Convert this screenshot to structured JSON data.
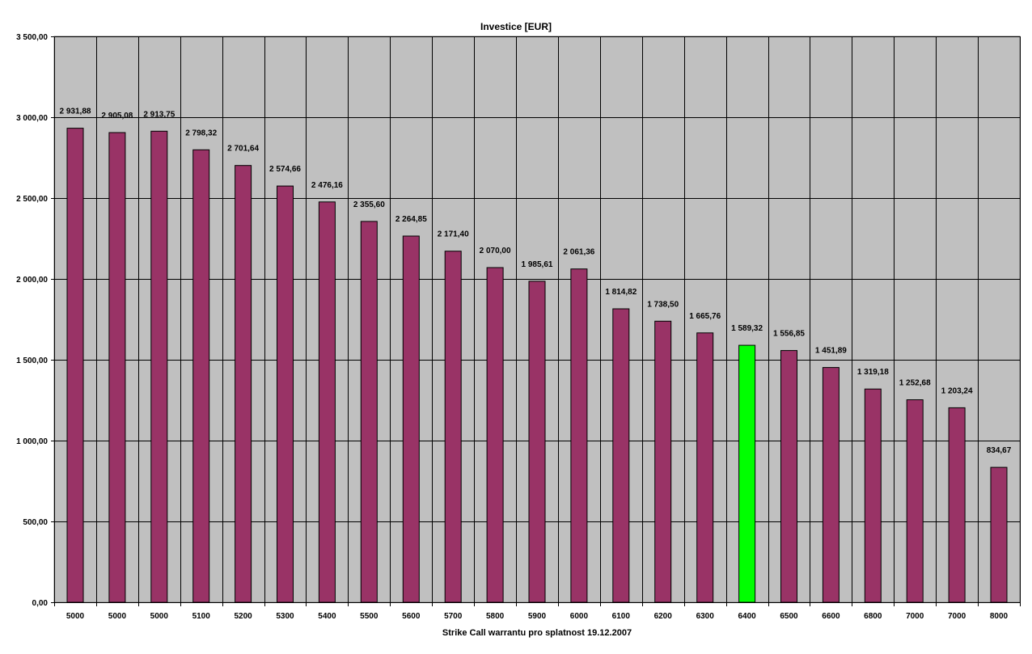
{
  "chart_data": {
    "type": "bar",
    "title": "Investice [EUR]",
    "xlabel": "Strike Call warrantu pro splatnost 19.12.2007",
    "ylabel": "",
    "ylim": [
      0,
      3500
    ],
    "yticks": [
      0,
      500,
      1000,
      1500,
      2000,
      2500,
      3000,
      3500
    ],
    "ytick_labels": [
      "0,00",
      "500,00",
      "1 000,00",
      "1 500,00",
      "2 000,00",
      "2 500,00",
      "3 000,00",
      "3 500,00"
    ],
    "grid": true,
    "categories": [
      "5000",
      "5000",
      "5000",
      "5100",
      "5200",
      "5300",
      "5400",
      "5500",
      "5600",
      "5700",
      "5800",
      "5900",
      "6000",
      "6100",
      "6200",
      "6300",
      "6400",
      "6500",
      "6600",
      "6800",
      "7000",
      "7000",
      "8000"
    ],
    "values": [
      2931.88,
      2905.08,
      2913.75,
      2798.32,
      2701.64,
      2574.66,
      2476.16,
      2355.6,
      2264.85,
      2171.4,
      2070.0,
      1985.61,
      2061.36,
      1814.82,
      1738.5,
      1665.76,
      1589.32,
      1556.85,
      1451.89,
      1319.18,
      1252.68,
      1203.24,
      834.67
    ],
    "data_labels": [
      "2 931,88",
      "2 905,08",
      "2 913,75",
      "2 798,32",
      "2 701,64",
      "2 574,66",
      "2 476,16",
      "2 355,60",
      "2 264,85",
      "2 171,40",
      "2 070,00",
      "1 985,61",
      "2 061,36",
      "1 814,82",
      "1 738,50",
      "1 665,76",
      "1 589,32",
      "1 556,85",
      "1 451,89",
      "1 319,18",
      "1 252,68",
      "1 203,24",
      "834,67"
    ],
    "highlight_index": 16,
    "colors": {
      "bar": "#993366",
      "highlight_bar": "#00ff00",
      "plot_background": "#c0c0c0",
      "grid": "#000000",
      "page_background": "#ffffff"
    }
  }
}
